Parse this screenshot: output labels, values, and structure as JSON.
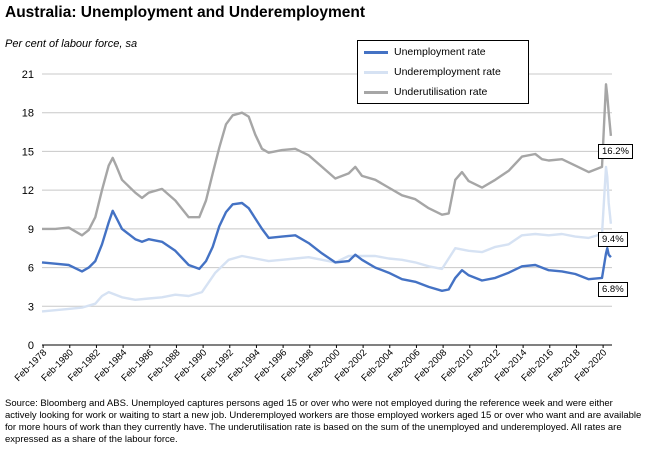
{
  "chart_data": {
    "type": "line",
    "title": "Australia: Unemployment and Underemployment",
    "subtitle": "Per cent of labour force, sa",
    "ylim": [
      0,
      21
    ],
    "yticks": [
      0,
      3,
      6,
      9,
      12,
      15,
      18,
      21
    ],
    "x_tick_labels": [
      "Feb-1978",
      "Feb-1980",
      "Feb-1982",
      "Feb-1984",
      "Feb-1986",
      "Feb-1988",
      "Feb-1990",
      "Feb-1992",
      "Feb-1994",
      "Feb-1996",
      "Feb-1998",
      "Feb-2000",
      "Feb-2002",
      "Feb-2004",
      "Feb-2006",
      "Feb-2008",
      "Feb-2010",
      "Feb-2012",
      "Feb-2014",
      "Feb-2016",
      "Feb-2018",
      "Feb-2020"
    ],
    "xlim": [
      1978.0,
      2020.75
    ],
    "legend_placement": "top-right",
    "grid": "horizontal",
    "series": [
      {
        "name": "Unemployment rate",
        "color": "#4472C4",
        "points": [
          [
            1978.0,
            6.4
          ],
          [
            1979.0,
            6.3
          ],
          [
            1980.0,
            6.2
          ],
          [
            1981.0,
            5.7
          ],
          [
            1981.5,
            6.0
          ],
          [
            1982.0,
            6.5
          ],
          [
            1982.5,
            7.8
          ],
          [
            1983.0,
            9.5
          ],
          [
            1983.3,
            10.4
          ],
          [
            1983.6,
            9.8
          ],
          [
            1984.0,
            9.0
          ],
          [
            1985.0,
            8.2
          ],
          [
            1985.5,
            8.0
          ],
          [
            1986.0,
            8.2
          ],
          [
            1987.0,
            8.0
          ],
          [
            1988.0,
            7.3
          ],
          [
            1989.0,
            6.2
          ],
          [
            1989.8,
            5.9
          ],
          [
            1990.3,
            6.5
          ],
          [
            1990.8,
            7.6
          ],
          [
            1991.3,
            9.2
          ],
          [
            1991.8,
            10.3
          ],
          [
            1992.3,
            10.9
          ],
          [
            1993.0,
            11.0
          ],
          [
            1993.5,
            10.6
          ],
          [
            1994.0,
            9.8
          ],
          [
            1994.5,
            9.0
          ],
          [
            1995.0,
            8.3
          ],
          [
            1996.0,
            8.4
          ],
          [
            1997.0,
            8.5
          ],
          [
            1998.0,
            7.9
          ],
          [
            1999.0,
            7.1
          ],
          [
            2000.0,
            6.4
          ],
          [
            2001.0,
            6.5
          ],
          [
            2001.5,
            7.0
          ],
          [
            2002.0,
            6.6
          ],
          [
            2003.0,
            6.0
          ],
          [
            2004.0,
            5.6
          ],
          [
            2005.0,
            5.1
          ],
          [
            2006.0,
            4.9
          ],
          [
            2007.0,
            4.5
          ],
          [
            2008.0,
            4.2
          ],
          [
            2008.5,
            4.3
          ],
          [
            2009.0,
            5.2
          ],
          [
            2009.5,
            5.8
          ],
          [
            2010.0,
            5.4
          ],
          [
            2011.0,
            5.0
          ],
          [
            2012.0,
            5.2
          ],
          [
            2013.0,
            5.6
          ],
          [
            2014.0,
            6.1
          ],
          [
            2015.0,
            6.2
          ],
          [
            2015.5,
            6.0
          ],
          [
            2016.0,
            5.8
          ],
          [
            2017.0,
            5.7
          ],
          [
            2018.0,
            5.5
          ],
          [
            2019.0,
            5.1
          ],
          [
            2020.0,
            5.2
          ],
          [
            2020.3,
            7.1
          ],
          [
            2020.4,
            7.5
          ],
          [
            2020.5,
            7.0
          ],
          [
            2020.67,
            6.8
          ]
        ]
      },
      {
        "name": "Underemployment rate",
        "color": "#D6E2F3",
        "points": [
          [
            1978.0,
            2.6
          ],
          [
            1979.0,
            2.7
          ],
          [
            1980.0,
            2.8
          ],
          [
            1981.0,
            2.9
          ],
          [
            1982.0,
            3.2
          ],
          [
            1982.5,
            3.8
          ],
          [
            1983.0,
            4.1
          ],
          [
            1984.0,
            3.7
          ],
          [
            1985.0,
            3.5
          ],
          [
            1986.0,
            3.6
          ],
          [
            1987.0,
            3.7
          ],
          [
            1988.0,
            3.9
          ],
          [
            1989.0,
            3.8
          ],
          [
            1990.0,
            4.1
          ],
          [
            1991.0,
            5.6
          ],
          [
            1992.0,
            6.6
          ],
          [
            1993.0,
            6.9
          ],
          [
            1994.0,
            6.7
          ],
          [
            1995.0,
            6.5
          ],
          [
            1996.0,
            6.6
          ],
          [
            1997.0,
            6.7
          ],
          [
            1998.0,
            6.8
          ],
          [
            1999.0,
            6.6
          ],
          [
            2000.0,
            6.4
          ],
          [
            2001.0,
            6.9
          ],
          [
            2002.0,
            6.9
          ],
          [
            2003.0,
            6.9
          ],
          [
            2004.0,
            6.7
          ],
          [
            2005.0,
            6.6
          ],
          [
            2006.0,
            6.4
          ],
          [
            2007.0,
            6.1
          ],
          [
            2008.0,
            5.9
          ],
          [
            2009.0,
            7.5
          ],
          [
            2010.0,
            7.3
          ],
          [
            2011.0,
            7.2
          ],
          [
            2012.0,
            7.6
          ],
          [
            2013.0,
            7.8
          ],
          [
            2014.0,
            8.5
          ],
          [
            2015.0,
            8.6
          ],
          [
            2016.0,
            8.5
          ],
          [
            2017.0,
            8.6
          ],
          [
            2018.0,
            8.4
          ],
          [
            2019.0,
            8.3
          ],
          [
            2020.0,
            8.6
          ],
          [
            2020.3,
            13.8
          ],
          [
            2020.4,
            13.0
          ],
          [
            2020.5,
            11.0
          ],
          [
            2020.67,
            9.4
          ]
        ]
      },
      {
        "name": "Underutilisation rate",
        "color": "#A6A6A6",
        "points": [
          [
            1978.0,
            9.0
          ],
          [
            1979.0,
            9.0
          ],
          [
            1980.0,
            9.1
          ],
          [
            1981.0,
            8.5
          ],
          [
            1981.5,
            8.9
          ],
          [
            1982.0,
            9.9
          ],
          [
            1982.5,
            12.0
          ],
          [
            1983.0,
            13.9
          ],
          [
            1983.3,
            14.5
          ],
          [
            1983.6,
            13.8
          ],
          [
            1984.0,
            12.8
          ],
          [
            1985.0,
            11.8
          ],
          [
            1985.5,
            11.4
          ],
          [
            1986.0,
            11.8
          ],
          [
            1987.0,
            12.1
          ],
          [
            1988.0,
            11.2
          ],
          [
            1989.0,
            9.9
          ],
          [
            1989.8,
            9.9
          ],
          [
            1990.3,
            11.2
          ],
          [
            1990.8,
            13.3
          ],
          [
            1991.3,
            15.3
          ],
          [
            1991.8,
            17.1
          ],
          [
            1992.3,
            17.8
          ],
          [
            1993.0,
            18.0
          ],
          [
            1993.5,
            17.7
          ],
          [
            1994.0,
            16.3
          ],
          [
            1994.5,
            15.2
          ],
          [
            1995.0,
            14.9
          ],
          [
            1996.0,
            15.1
          ],
          [
            1997.0,
            15.2
          ],
          [
            1998.0,
            14.7
          ],
          [
            1999.0,
            13.8
          ],
          [
            2000.0,
            12.9
          ],
          [
            2001.0,
            13.3
          ],
          [
            2001.5,
            13.8
          ],
          [
            2002.0,
            13.1
          ],
          [
            2003.0,
            12.8
          ],
          [
            2004.0,
            12.2
          ],
          [
            2005.0,
            11.6
          ],
          [
            2006.0,
            11.3
          ],
          [
            2007.0,
            10.6
          ],
          [
            2008.0,
            10.1
          ],
          [
            2008.5,
            10.2
          ],
          [
            2009.0,
            12.8
          ],
          [
            2009.5,
            13.4
          ],
          [
            2010.0,
            12.7
          ],
          [
            2011.0,
            12.2
          ],
          [
            2012.0,
            12.8
          ],
          [
            2013.0,
            13.5
          ],
          [
            2014.0,
            14.6
          ],
          [
            2015.0,
            14.8
          ],
          [
            2015.5,
            14.4
          ],
          [
            2016.0,
            14.3
          ],
          [
            2017.0,
            14.4
          ],
          [
            2018.0,
            13.9
          ],
          [
            2019.0,
            13.4
          ],
          [
            2020.0,
            13.8
          ],
          [
            2020.3,
            20.2
          ],
          [
            2020.4,
            19.3
          ],
          [
            2020.5,
            18.0
          ],
          [
            2020.67,
            16.2
          ]
        ]
      }
    ],
    "annotations": [
      "16.2%",
      "9.4%",
      "6.8%"
    ]
  },
  "source_note": "Source: Bloomberg and ABS. Unemployed captures persons aged 15 or over who were not employed during the reference week and were either actively looking for work or waiting to start a new job. Underemployed workers are those employed workers aged 15 or over who want and are available for more hours of work than they currently have. The underutilisation rate is based on the sum of the unemployed and underemployed. All rates are expressed as a share of the labour force."
}
